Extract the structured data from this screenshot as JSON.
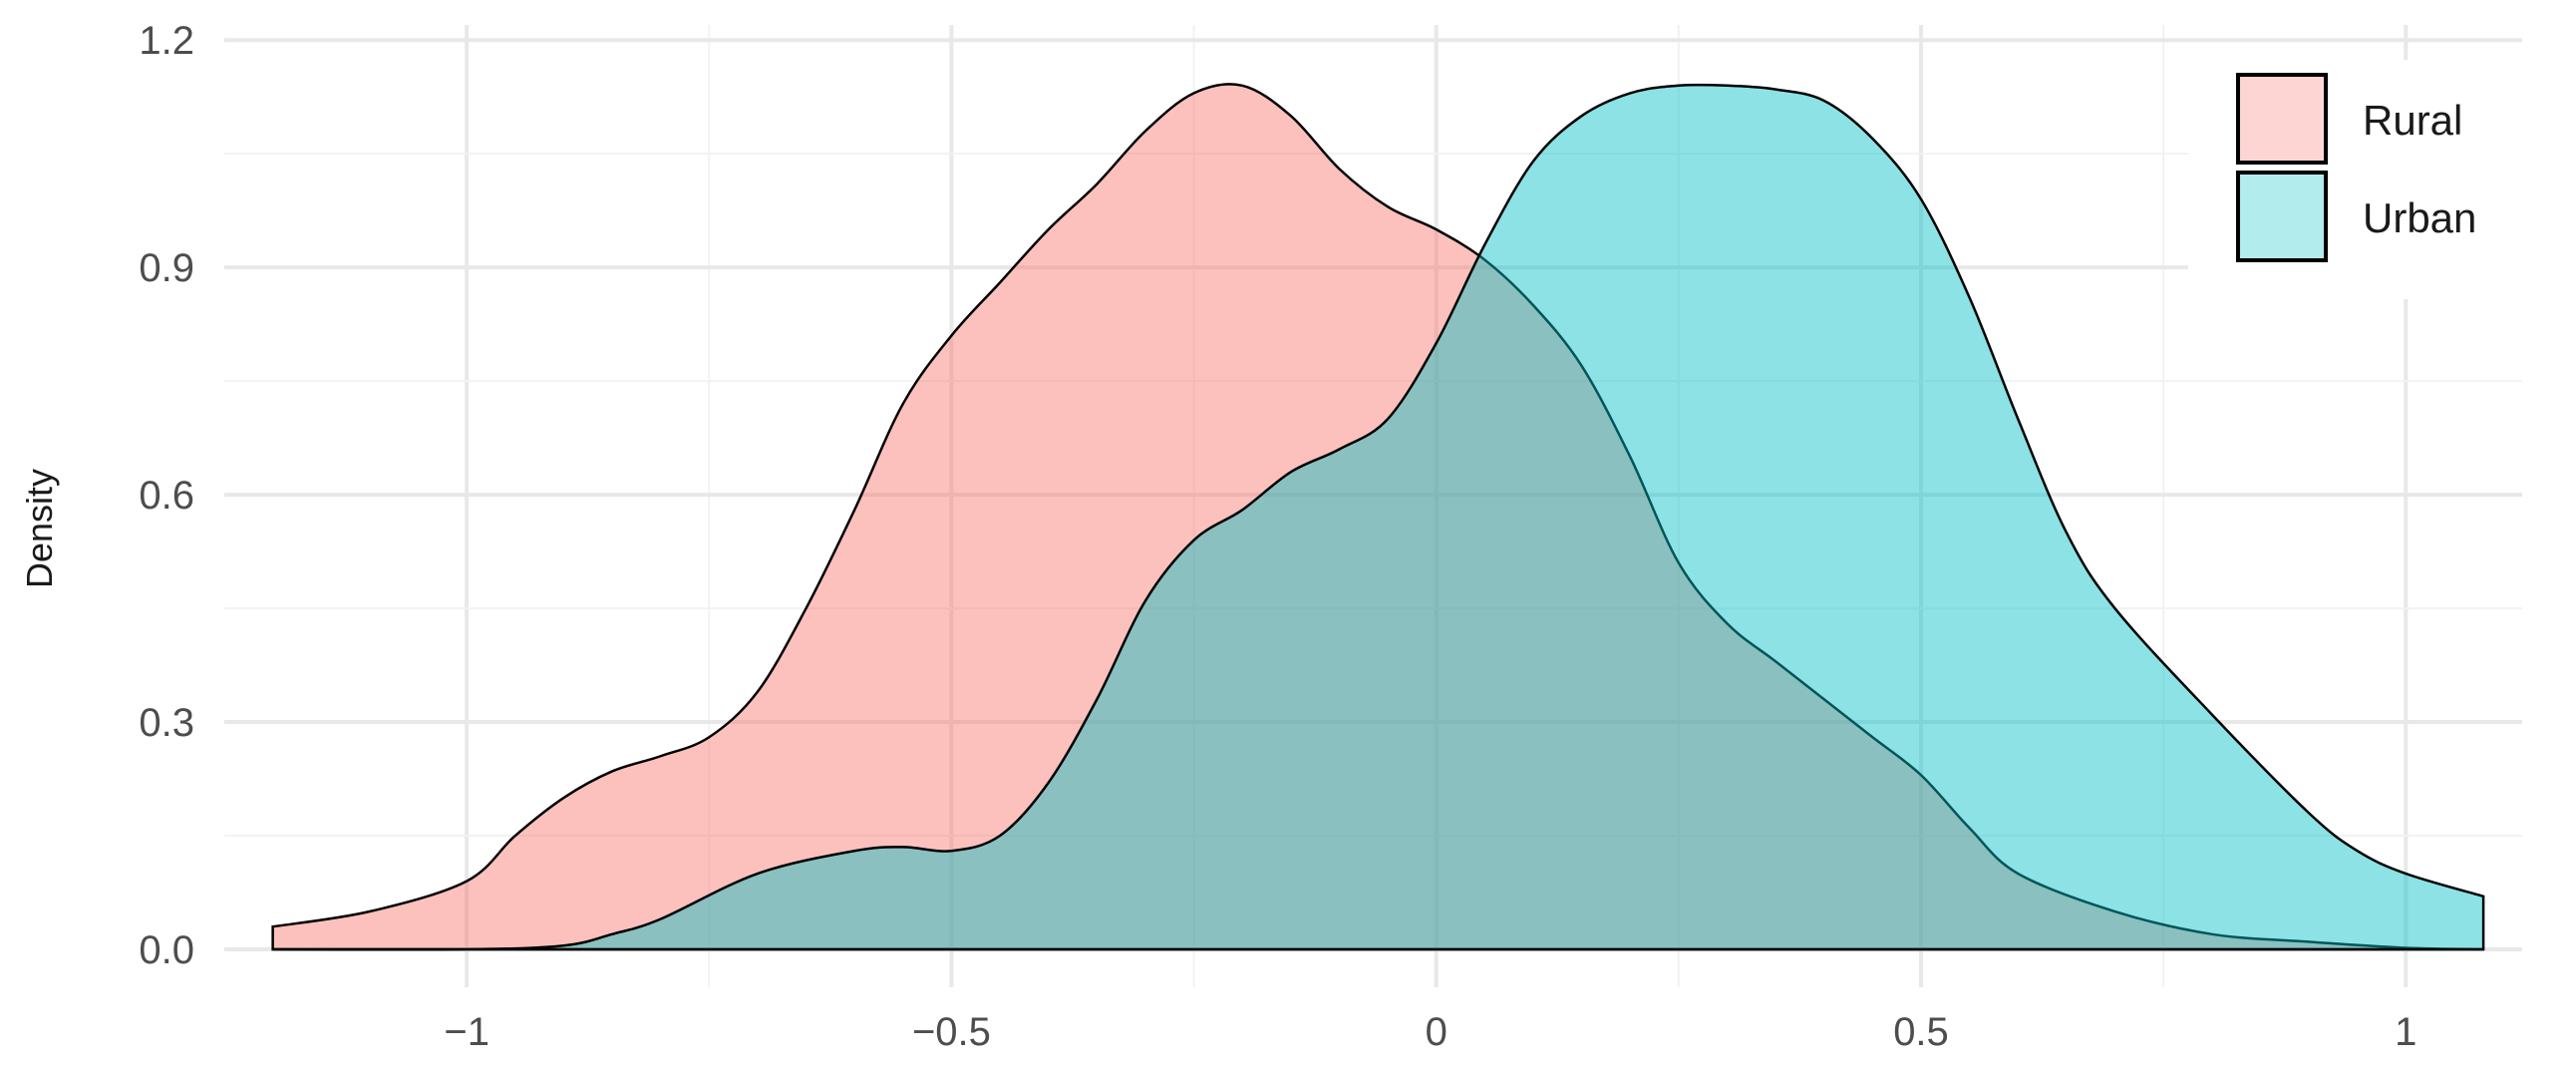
{
  "chart_data": {
    "type": "area",
    "subtype": "density",
    "title": "",
    "xlabel": "",
    "ylabel": "Density",
    "xlim": [
      -1.25,
      1.12
    ],
    "ylim": [
      -0.05,
      1.22
    ],
    "x_ticks": [
      -1,
      -0.5,
      0,
      0.5,
      1
    ],
    "x_tick_labels": [
      "−1",
      "−0.5",
      "0",
      "0.5",
      "1"
    ],
    "y_ticks": [
      0,
      0.3,
      0.6,
      0.9,
      1.2
    ],
    "y_tick_labels": [
      "0.0",
      "0.3",
      "0.6",
      "0.9",
      "1.2"
    ],
    "grid": true,
    "legend_position": "top-right",
    "series": [
      {
        "name": "Rural",
        "color": "#F8766D",
        "x": [
          -1.2,
          -1.1,
          -1.0,
          -0.95,
          -0.9,
          -0.85,
          -0.8,
          -0.75,
          -0.7,
          -0.65,
          -0.6,
          -0.55,
          -0.5,
          -0.45,
          -0.4,
          -0.35,
          -0.3,
          -0.25,
          -0.2,
          -0.15,
          -0.1,
          -0.05,
          0.0,
          0.05,
          0.1,
          0.15,
          0.2,
          0.25,
          0.3,
          0.35,
          0.4,
          0.45,
          0.5,
          0.55,
          0.6,
          0.7,
          0.8,
          0.9,
          1.0,
          1.08
        ],
        "y": [
          0.03,
          0.05,
          0.09,
          0.15,
          0.2,
          0.235,
          0.255,
          0.28,
          0.34,
          0.45,
          0.58,
          0.72,
          0.81,
          0.88,
          0.95,
          1.01,
          1.08,
          1.13,
          1.14,
          1.1,
          1.03,
          0.98,
          0.95,
          0.91,
          0.85,
          0.77,
          0.65,
          0.51,
          0.43,
          0.38,
          0.33,
          0.28,
          0.23,
          0.16,
          0.1,
          0.05,
          0.02,
          0.01,
          0.002,
          0.0
        ]
      },
      {
        "name": "Urban",
        "color": "#00BFC4",
        "x": [
          -1.2,
          -1.0,
          -0.9,
          -0.85,
          -0.8,
          -0.7,
          -0.6,
          -0.55,
          -0.5,
          -0.45,
          -0.4,
          -0.35,
          -0.3,
          -0.25,
          -0.2,
          -0.15,
          -0.1,
          -0.05,
          0.0,
          0.05,
          0.1,
          0.15,
          0.2,
          0.25,
          0.3,
          0.35,
          0.4,
          0.45,
          0.5,
          0.55,
          0.6,
          0.65,
          0.7,
          0.8,
          0.9,
          0.95,
          1.0,
          1.08
        ],
        "y": [
          0.0,
          0.0,
          0.005,
          0.02,
          0.04,
          0.1,
          0.13,
          0.135,
          0.13,
          0.15,
          0.22,
          0.33,
          0.46,
          0.54,
          0.58,
          0.63,
          0.66,
          0.7,
          0.8,
          0.93,
          1.04,
          1.1,
          1.13,
          1.14,
          1.14,
          1.135,
          1.12,
          1.07,
          0.99,
          0.86,
          0.7,
          0.55,
          0.45,
          0.31,
          0.18,
          0.13,
          0.1,
          0.07
        ]
      }
    ]
  }
}
